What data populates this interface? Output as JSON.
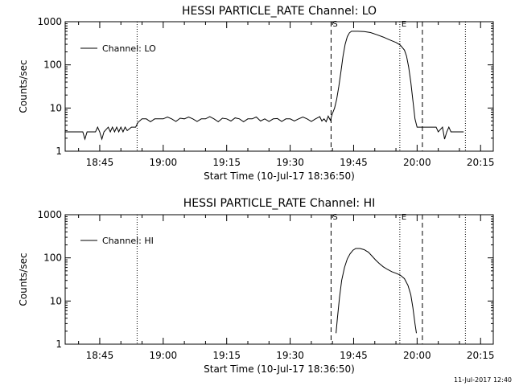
{
  "footer": {
    "timestamp": "11-Jul-2017 12:40"
  },
  "chart_data": [
    {
      "type": "line",
      "title": "HESSI PARTICLE_RATE Channel: LO",
      "xlabel": "Start Time (10-Jul-17 18:36:50)",
      "ylabel": "Counts/sec",
      "y_scale": "log",
      "xlim": [
        "18:36:50",
        "20:18:00"
      ],
      "ylim": [
        1,
        1000
      ],
      "x_ticks": [
        "18:45",
        "19:00",
        "19:15",
        "19:30",
        "19:45",
        "20:00",
        "20:15"
      ],
      "y_ticks": [
        "1",
        "10",
        "100",
        "1000"
      ],
      "grid": false,
      "legend_placement": "top-left",
      "series": [
        {
          "name": "Channel: LO",
          "color": "#000000",
          "points": [
            [
              "18:36:50",
              2.8
            ],
            [
              "18:41:00",
              2.8
            ],
            [
              "18:41:30",
              1.9
            ],
            [
              "18:42:00",
              2.8
            ],
            [
              "18:44:00",
              2.8
            ],
            [
              "18:44:30",
              3.6
            ],
            [
              "18:45:00",
              2.8
            ],
            [
              "18:45:30",
              1.9
            ],
            [
              "18:46:00",
              2.8
            ],
            [
              "18:47:00",
              3.6
            ],
            [
              "18:47:30",
              2.8
            ],
            [
              "18:48:00",
              3.6
            ],
            [
              "18:48:30",
              2.8
            ],
            [
              "18:49:00",
              3.6
            ],
            [
              "18:49:30",
              2.8
            ],
            [
              "18:50:00",
              3.6
            ],
            [
              "18:50:30",
              2.8
            ],
            [
              "18:51:00",
              3.6
            ],
            [
              "18:51:30",
              3.0
            ],
            [
              "18:52:30",
              3.6
            ],
            [
              "18:53:30",
              3.6
            ],
            [
              "18:54:00",
              4.6
            ],
            [
              "18:55:00",
              5.6
            ],
            [
              "18:56:00",
              5.6
            ],
            [
              "18:57:00",
              4.8
            ],
            [
              "18:58:00",
              5.6
            ],
            [
              "18:59:00",
              5.6
            ],
            [
              "19:00:00",
              5.6
            ],
            [
              "19:01:00",
              6.2
            ],
            [
              "19:02:00",
              5.6
            ],
            [
              "19:03:00",
              4.9
            ],
            [
              "19:04:00",
              5.8
            ],
            [
              "19:05:00",
              5.6
            ],
            [
              "19:06:00",
              6.2
            ],
            [
              "19:07:00",
              5.6
            ],
            [
              "19:08:00",
              4.9
            ],
            [
              "19:09:00",
              5.6
            ],
            [
              "19:10:00",
              5.6
            ],
            [
              "19:11:00",
              6.3
            ],
            [
              "19:12:00",
              5.6
            ],
            [
              "19:13:00",
              4.8
            ],
            [
              "19:14:00",
              5.8
            ],
            [
              "19:15:00",
              5.6
            ],
            [
              "19:16:00",
              5.0
            ],
            [
              "19:17:00",
              5.9
            ],
            [
              "19:18:00",
              5.6
            ],
            [
              "19:19:00",
              4.8
            ],
            [
              "19:20:00",
              5.6
            ],
            [
              "19:21:00",
              5.6
            ],
            [
              "19:22:00",
              6.2
            ],
            [
              "19:23:00",
              5.0
            ],
            [
              "19:24:00",
              5.6
            ],
            [
              "19:25:00",
              4.9
            ],
            [
              "19:26:00",
              5.6
            ],
            [
              "19:27:00",
              5.7
            ],
            [
              "19:28:00",
              4.9
            ],
            [
              "19:29:00",
              5.6
            ],
            [
              "19:30:00",
              5.6
            ],
            [
              "19:31:00",
              5.0
            ],
            [
              "19:32:00",
              5.6
            ],
            [
              "19:33:00",
              6.2
            ],
            [
              "19:34:00",
              5.6
            ],
            [
              "19:35:00",
              4.9
            ],
            [
              "19:36:00",
              5.6
            ],
            [
              "19:37:00",
              6.3
            ],
            [
              "19:37:30",
              5.0
            ],
            [
              "19:38:00",
              5.6
            ],
            [
              "19:38:30",
              4.8
            ],
            [
              "19:39:00",
              6.5
            ],
            [
              "19:39:30",
              5.2
            ],
            [
              "19:40:00",
              7.5
            ],
            [
              "19:40:30",
              10
            ],
            [
              "19:41:00",
              16
            ],
            [
              "19:41:30",
              32
            ],
            [
              "19:42:00",
              70
            ],
            [
              "19:42:30",
              160
            ],
            [
              "19:43:00",
              300
            ],
            [
              "19:43:30",
              450
            ],
            [
              "19:44:00",
              550
            ],
            [
              "19:44:30",
              600
            ],
            [
              "19:46:00",
              600
            ],
            [
              "19:47:30",
              590
            ],
            [
              "19:49:00",
              560
            ],
            [
              "19:50:30",
              500
            ],
            [
              "19:52:00",
              440
            ],
            [
              "19:53:30",
              380
            ],
            [
              "19:55:00",
              330
            ],
            [
              "19:56:00",
              290
            ],
            [
              "19:57:00",
              220
            ],
            [
              "19:57:30",
              160
            ],
            [
              "19:58:00",
              90
            ],
            [
              "19:58:30",
              40
            ],
            [
              "19:59:00",
              15
            ],
            [
              "19:59:30",
              5.6
            ],
            [
              "20:00:00",
              3.6
            ],
            [
              "20:04:30",
              3.6
            ],
            [
              "20:05:00",
              2.8
            ],
            [
              "20:06:00",
              3.6
            ],
            [
              "20:06:30",
              1.9
            ],
            [
              "20:07:00",
              2.8
            ],
            [
              "20:07:30",
              3.6
            ],
            [
              "20:08:00",
              2.8
            ],
            [
              "20:11:00",
              2.8
            ]
          ]
        }
      ],
      "annotations": [
        {
          "text": "S",
          "x": "19:39:40"
        },
        {
          "text": "E",
          "x": "19:55:55"
        }
      ],
      "vertical_lines": [
        {
          "x": "18:53:50",
          "style": "dotted"
        },
        {
          "x": "19:39:40",
          "style": "dashed"
        },
        {
          "x": "19:55:55",
          "style": "dotted"
        },
        {
          "x": "20:01:15",
          "style": "dashed"
        },
        {
          "x": "20:11:25",
          "style": "dotted"
        }
      ]
    },
    {
      "type": "line",
      "title": "HESSI PARTICLE_RATE Channel: HI",
      "xlabel": "Start Time (10-Jul-17 18:36:50)",
      "ylabel": "Counts/sec",
      "y_scale": "log",
      "xlim": [
        "18:36:50",
        "20:18:00"
      ],
      "ylim": [
        1,
        1000
      ],
      "x_ticks": [
        "18:45",
        "19:00",
        "19:15",
        "19:30",
        "19:45",
        "20:00",
        "20:15"
      ],
      "y_ticks": [
        "1",
        "10",
        "100",
        "1000"
      ],
      "grid": false,
      "legend_placement": "top-left",
      "series": [
        {
          "name": "Channel: HI",
          "color": "#000000",
          "points": [
            [
              "19:40:50",
              1.8
            ],
            [
              "19:41:10",
              4
            ],
            [
              "19:41:40",
              12
            ],
            [
              "19:42:10",
              30
            ],
            [
              "19:42:50",
              60
            ],
            [
              "19:43:30",
              95
            ],
            [
              "19:44:10",
              125
            ],
            [
              "19:44:50",
              150
            ],
            [
              "19:45:30",
              165
            ],
            [
              "19:46:30",
              165
            ],
            [
              "19:47:30",
              155
            ],
            [
              "19:48:30",
              135
            ],
            [
              "19:49:20",
              110
            ],
            [
              "19:50:10",
              90
            ],
            [
              "19:51:00",
              75
            ],
            [
              "19:52:00",
              62
            ],
            [
              "19:53:00",
              54
            ],
            [
              "19:54:00",
              48
            ],
            [
              "19:55:00",
              44
            ],
            [
              "19:56:00",
              40
            ],
            [
              "19:57:00",
              33
            ],
            [
              "19:57:50",
              23
            ],
            [
              "19:58:30",
              14
            ],
            [
              "19:59:00",
              7
            ],
            [
              "19:59:30",
              3
            ],
            [
              "19:59:50",
              1.8
            ]
          ]
        }
      ],
      "annotations": [
        {
          "text": "S",
          "x": "19:39:40"
        },
        {
          "text": "E",
          "x": "19:55:55"
        }
      ],
      "vertical_lines": [
        {
          "x": "18:53:50",
          "style": "dotted"
        },
        {
          "x": "19:39:40",
          "style": "dashed"
        },
        {
          "x": "19:55:55",
          "style": "dotted"
        },
        {
          "x": "20:01:15",
          "style": "dashed"
        },
        {
          "x": "20:11:25",
          "style": "dotted"
        }
      ]
    }
  ]
}
